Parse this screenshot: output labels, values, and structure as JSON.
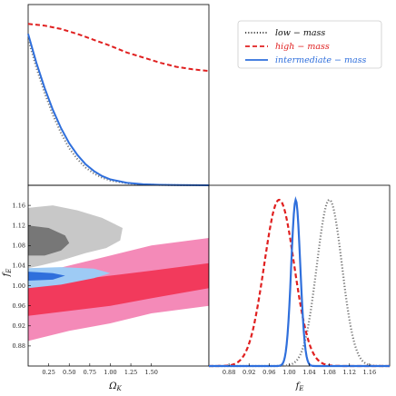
{
  "chart_data": [
    {
      "panel": "top-left",
      "type": "line",
      "title": "",
      "xlabel": "",
      "ylabel": "",
      "xlim": [
        0,
        2.2
      ],
      "series": [
        {
          "name": "low − mass",
          "color": "#777777",
          "style": "dotted",
          "x": [
            0,
            0.1,
            0.2,
            0.3,
            0.4,
            0.5,
            0.6,
            0.7,
            0.8,
            0.9,
            1.0,
            1.2,
            1.4,
            1.6,
            1.8,
            2.0,
            2.2
          ],
          "y": [
            0.87,
            0.7,
            0.55,
            0.42,
            0.31,
            0.22,
            0.155,
            0.105,
            0.07,
            0.045,
            0.028,
            0.012,
            0.005,
            0.002,
            0.001,
            0.0005,
            0.0002
          ]
        },
        {
          "name": "high − mass",
          "color": "#e02020",
          "style": "dashed",
          "x": [
            0,
            0.2,
            0.4,
            0.6,
            0.8,
            1.0,
            1.2,
            1.4,
            1.6,
            1.8,
            2.0,
            2.2
          ],
          "y": [
            0.96,
            0.95,
            0.93,
            0.9,
            0.865,
            0.83,
            0.79,
            0.76,
            0.73,
            0.705,
            0.69,
            0.68
          ]
        },
        {
          "name": "intermediate − mass",
          "color": "#2f6fdc",
          "style": "solid",
          "x": [
            0,
            0.1,
            0.2,
            0.3,
            0.4,
            0.5,
            0.6,
            0.7,
            0.8,
            0.9,
            1.0,
            1.2,
            1.4,
            1.6,
            1.8,
            2.0,
            2.2
          ],
          "y": [
            0.9,
            0.73,
            0.58,
            0.45,
            0.34,
            0.25,
            0.18,
            0.125,
            0.085,
            0.055,
            0.035,
            0.015,
            0.006,
            0.0025,
            0.001,
            0.0005,
            0.0002
          ]
        }
      ]
    },
    {
      "panel": "bottom-left",
      "type": "scatter",
      "xlabel": "Ω",
      "xlabel_sub": "K",
      "ylabel": "f",
      "ylabel_sub": "E",
      "xlim": [
        0,
        2.2
      ],
      "ylim": [
        0.84,
        1.2
      ],
      "xticks": [
        "0.25",
        "0.50",
        "0.75",
        "1.00",
        "1.25",
        "1.50"
      ],
      "yticks": [
        "0.88",
        "0.92",
        "0.96",
        "1.00",
        "1.04",
        "1.08",
        "1.12",
        "1.16"
      ],
      "contours": [
        {
          "name": "high − mass",
          "level": "95%",
          "color": "#f48ab8",
          "x": [
            0,
            0.5,
            1.0,
            1.5,
            2.2,
            2.2,
            1.5,
            1.0,
            0.5,
            0
          ],
          "y": [
            1.02,
            1.04,
            1.06,
            1.08,
            1.095,
            0.96,
            0.945,
            0.925,
            0.91,
            0.89
          ]
        },
        {
          "name": "high − mass",
          "level": "68%",
          "color": "#f23a5c",
          "x": [
            0,
            0.5,
            1.0,
            1.5,
            2.2,
            2.2,
            1.5,
            1.0,
            0.5,
            0
          ],
          "y": [
            1.0,
            1.01,
            1.02,
            1.03,
            1.045,
            0.995,
            0.975,
            0.96,
            0.95,
            0.94
          ]
        },
        {
          "name": "low − mass",
          "level": "95%",
          "color": "#c8c8c8",
          "x": [
            0,
            0.3,
            0.6,
            0.9,
            1.15,
            1.12,
            0.95,
            0.7,
            0.4,
            0.15,
            0
          ],
          "y": [
            1.155,
            1.16,
            1.15,
            1.135,
            1.115,
            1.09,
            1.075,
            1.065,
            1.05,
            1.04,
            1.035
          ]
        },
        {
          "name": "low − mass",
          "level": "68%",
          "color": "#777777",
          "x": [
            0,
            0.25,
            0.45,
            0.5,
            0.4,
            0.2,
            0
          ],
          "y": [
            1.12,
            1.115,
            1.1,
            1.085,
            1.07,
            1.06,
            1.06
          ]
        },
        {
          "name": "intermediate − mass",
          "level": "95%",
          "color": "#9ecbf5",
          "x": [
            0,
            0.4,
            0.8,
            1.0,
            0.8,
            0.4,
            0
          ],
          "y": [
            1.035,
            1.037,
            1.034,
            1.025,
            1.015,
            1.002,
            0.995
          ]
        },
        {
          "name": "intermediate − mass",
          "level": "68%",
          "color": "#2f6fdc",
          "x": [
            0,
            0.3,
            0.45,
            0.3,
            0
          ],
          "y": [
            1.028,
            1.025,
            1.02,
            1.012,
            1.01
          ]
        }
      ]
    },
    {
      "panel": "bottom-right",
      "type": "line",
      "xlabel": "f",
      "xlabel_sub": "E",
      "xlim": [
        0.84,
        1.2
      ],
      "xticks": [
        "0.88",
        "0.92",
        "0.96",
        "1.00",
        "1.04",
        "1.08",
        "1.12",
        "1.16"
      ],
      "series": [
        {
          "name": "low − mass",
          "color": "#777777",
          "style": "dotted",
          "mean": 1.08,
          "sigma": 0.025
        },
        {
          "name": "high − mass",
          "color": "#e02020",
          "style": "dashed",
          "mean": 0.98,
          "sigma": 0.03
        },
        {
          "name": "intermediate − mass",
          "color": "#2f6fdc",
          "style": "solid",
          "mean": 1.013,
          "sigma": 0.009
        }
      ]
    }
  ],
  "legend": {
    "placement": "top-right",
    "entries": [
      {
        "label": "low − mass",
        "color": "#111111",
        "style": "dotted"
      },
      {
        "label": "high − mass",
        "color": "#e02020",
        "style": "dashed"
      },
      {
        "label": "intermediate − mass",
        "color": "#2f6fdc",
        "style": "solid"
      }
    ]
  }
}
